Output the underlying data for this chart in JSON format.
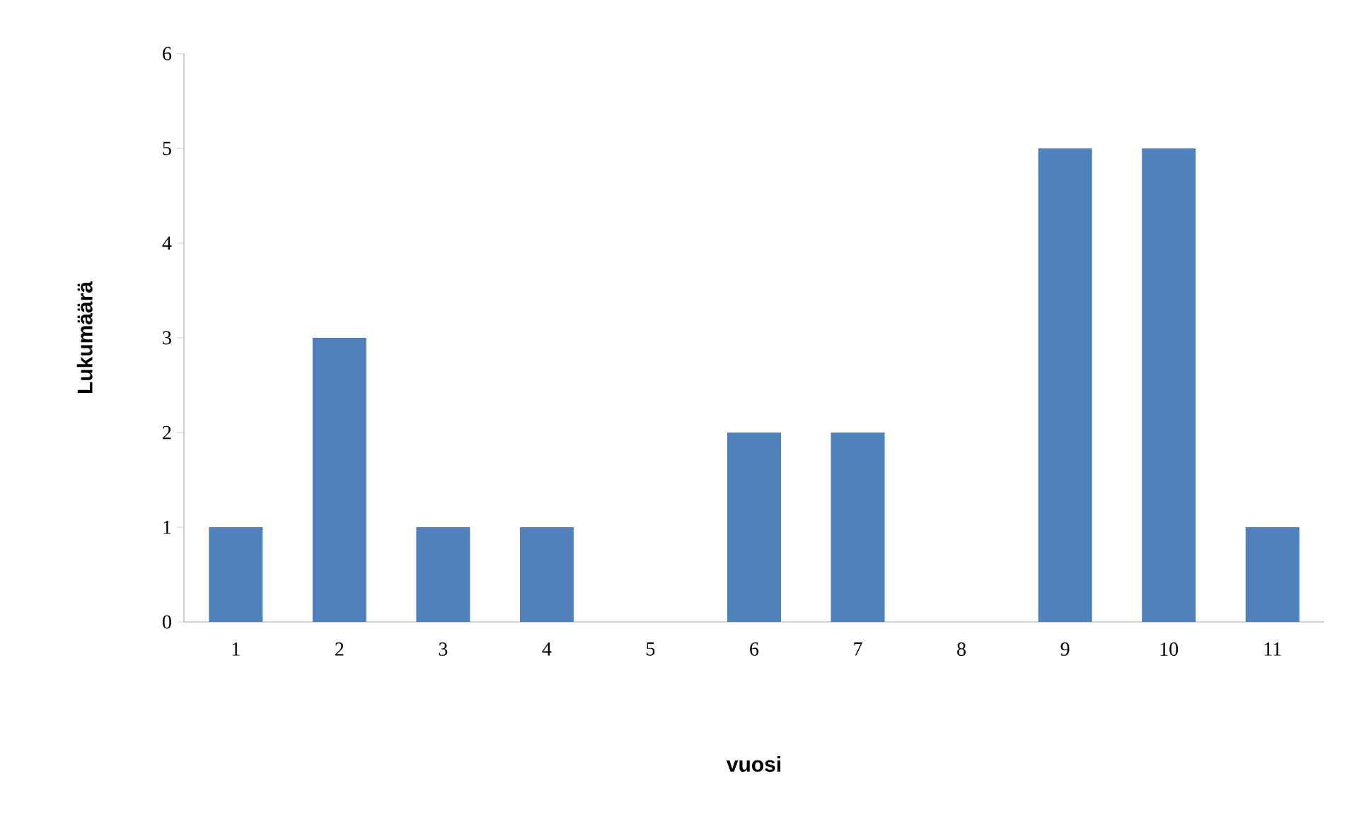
{
  "chart_data": {
    "type": "bar",
    "xlabel": "vuosi",
    "ylabel": "Lukumäärä",
    "categories": [
      "1",
      "2",
      "3",
      "4",
      "5",
      "6",
      "7",
      "8",
      "9",
      "10",
      "11"
    ],
    "values": [
      1,
      3,
      1,
      1,
      0,
      2,
      2,
      0,
      5,
      5,
      1
    ],
    "color": "#4f81bd",
    "ylim": [
      0,
      6
    ],
    "yticks": [
      0,
      1,
      2,
      3,
      4,
      5,
      6
    ]
  }
}
